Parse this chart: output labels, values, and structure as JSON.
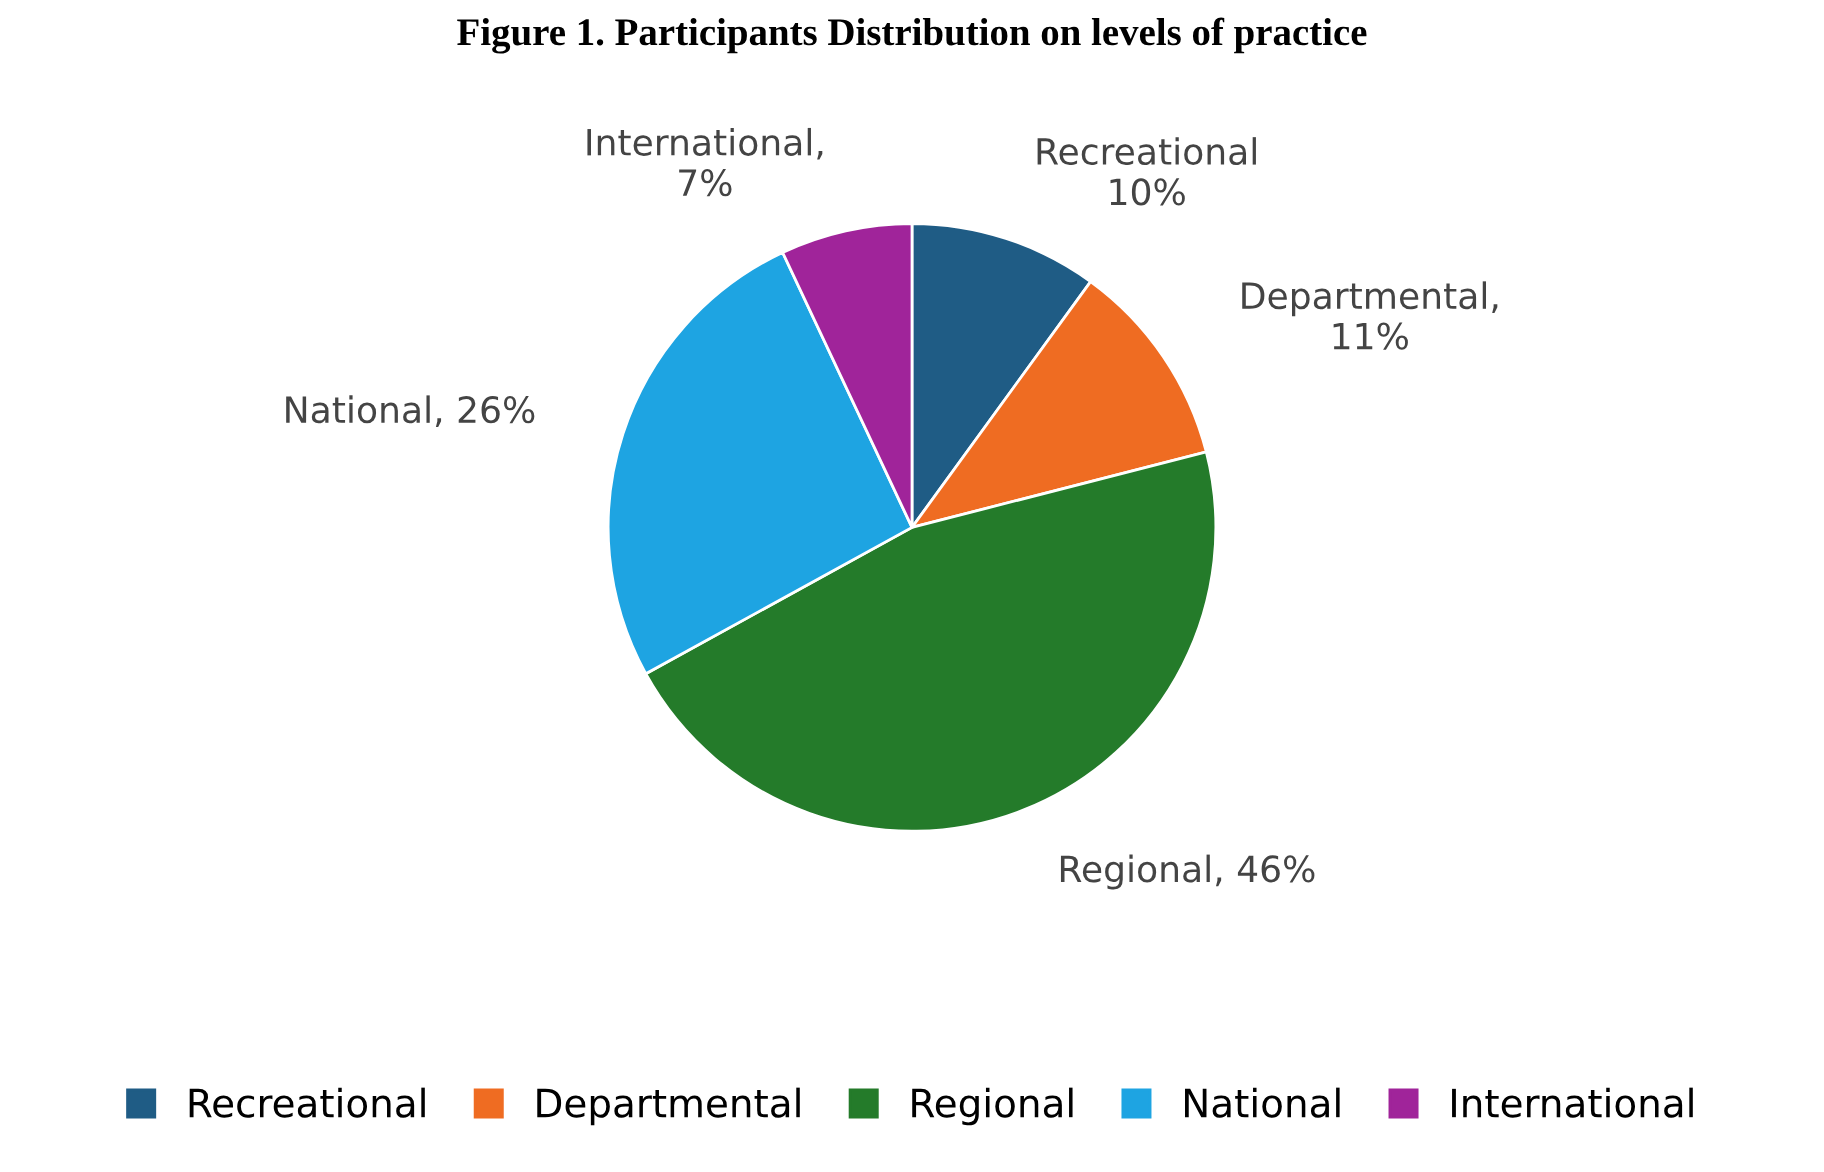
{
  "chart_data": {
    "type": "pie",
    "title": "Figure 1. Participants Distribution on levels of practice",
    "categories": [
      "Recreational",
      "Departmental",
      "Regional",
      "National",
      "International"
    ],
    "values": [
      10,
      11,
      46,
      26,
      7
    ],
    "colors": [
      "#1f5c85",
      "#ef6c22",
      "#247b2a",
      "#1ea4e2",
      "#a0249a"
    ],
    "value_labels": [
      "Recreational\n10%",
      "Departmental,\n11%",
      "Regional, 46%",
      "National, 26%",
      "International,\n7%"
    ],
    "legend": "bottom"
  }
}
